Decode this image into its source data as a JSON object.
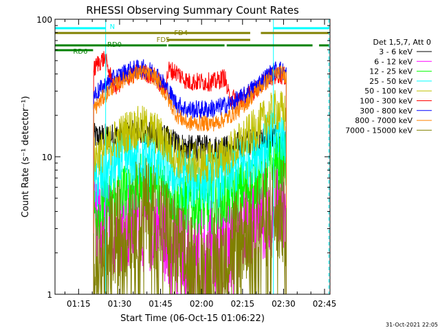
{
  "chart_data": {
    "type": "line",
    "title": "RHESSI Observing Summary Count Rates",
    "xlabel": "Start Time (06-Oct-15 01:06:22)",
    "ylabel": "Count Rate (s⁻¹ detector⁻¹)",
    "yscale": "log",
    "ylim": [
      1,
      100
    ],
    "xlim_minutes": [
      66.37,
      167.0
    ],
    "x_ticks": [
      {
        "m": 75,
        "label": "01:15"
      },
      {
        "m": 90,
        "label": "01:30"
      },
      {
        "m": 105,
        "label": "01:45"
      },
      {
        "m": 120,
        "label": "02:00"
      },
      {
        "m": 135,
        "label": "02:15"
      },
      {
        "m": 150,
        "label": "02:30"
      },
      {
        "m": 165,
        "label": "02:45"
      }
    ],
    "y_ticks": [
      {
        "v": 1,
        "label": "1"
      },
      {
        "v": 10,
        "label": "10"
      },
      {
        "v": 100,
        "label": "100"
      }
    ],
    "legend_header": "Det 1,5,7, Att 0",
    "legend_position": "right",
    "footer_date": "31-Oct-2021 22:05",
    "night_line": {
      "label": "N",
      "color": "#00ffff",
      "segments": [
        [
          66.4,
          84.9
        ],
        [
          146.3,
          166.6
        ]
      ],
      "boundaries": [
        84.9,
        146.3
      ],
      "dashed_boundary": 166.6
    },
    "flag_lines": [
      {
        "label": "FD4",
        "color": "#808000",
        "level": 1,
        "segments": [
          [
            66.4,
            137.8
          ],
          [
            141.7,
            166.6
          ]
        ]
      },
      {
        "label": "FD5",
        "color": "#808000",
        "level": 2,
        "segments": [
          [
            107.3,
            137.8
          ]
        ]
      },
      {
        "label": "RD0",
        "color": "#008000",
        "level": 3,
        "segments": [
          [
            66.4,
            107.3
          ],
          [
            107.8,
            128.4
          ],
          [
            129.2,
            160.6
          ],
          [
            163.0,
            166.6
          ]
        ]
      },
      {
        "label": "RD6",
        "color": "#008000",
        "level": 4,
        "segments": [
          [
            66.4,
            80.3
          ]
        ]
      }
    ],
    "data_gaps": [
      [
        66.37,
        80.3
      ],
      [
        151.7,
        167.0
      ]
    ],
    "series": [
      {
        "name": "3 - 6 keV",
        "color": "#000000",
        "points": [
          [
            80.5,
            14
          ],
          [
            84,
            14
          ],
          [
            88,
            14
          ],
          [
            93,
            14.5
          ],
          [
            98,
            15
          ],
          [
            103,
            14.5
          ],
          [
            107,
            13.5
          ],
          [
            111,
            12.5
          ],
          [
            115,
            11.5
          ],
          [
            120,
            11.5
          ],
          [
            125,
            11.5
          ],
          [
            130,
            11.5
          ],
          [
            135,
            12.5
          ],
          [
            140,
            13
          ],
          [
            145,
            13.5
          ],
          [
            148,
            13.5
          ],
          [
            151,
            12
          ]
        ]
      },
      {
        "name": "6 - 12 keV",
        "color": "#ff00ff",
        "points": [
          [
            80.5,
            3
          ],
          [
            84,
            3
          ],
          [
            88,
            3.1
          ],
          [
            93,
            3.2
          ],
          [
            98,
            3.2
          ],
          [
            103,
            3
          ],
          [
            107,
            2.6
          ],
          [
            111,
            2.3
          ],
          [
            115,
            2.2
          ],
          [
            120,
            2.2
          ],
          [
            125,
            2.2
          ],
          [
            130,
            2.4
          ],
          [
            135,
            2.8
          ],
          [
            140,
            3.3
          ],
          [
            145,
            4
          ],
          [
            148,
            4.5
          ],
          [
            151,
            4.5
          ]
        ]
      },
      {
        "name": "12 - 25 keV",
        "color": "#00ff00",
        "points": [
          [
            80.5,
            4
          ],
          [
            84,
            4.2
          ],
          [
            88,
            5
          ],
          [
            93,
            5.8
          ],
          [
            98,
            6.5
          ],
          [
            103,
            6.5
          ],
          [
            107,
            5.8
          ],
          [
            111,
            4.8
          ],
          [
            115,
            4.5
          ],
          [
            120,
            4.5
          ],
          [
            125,
            4.5
          ],
          [
            130,
            5
          ],
          [
            135,
            5.8
          ],
          [
            140,
            6.8
          ],
          [
            145,
            8.5
          ],
          [
            148,
            9.5
          ],
          [
            151,
            9
          ]
        ]
      },
      {
        "name": "25 - 50 keV",
        "color": "#00ffff",
        "points": [
          [
            80.5,
            6.5
          ],
          [
            84,
            7
          ],
          [
            88,
            8.5
          ],
          [
            93,
            9.5
          ],
          [
            98,
            10
          ],
          [
            103,
            9.5
          ],
          [
            107,
            8.5
          ],
          [
            111,
            7
          ],
          [
            115,
            6.8
          ],
          [
            120,
            6.8
          ],
          [
            125,
            6.8
          ],
          [
            130,
            7.5
          ],
          [
            135,
            9
          ],
          [
            140,
            11
          ],
          [
            145,
            13
          ],
          [
            148,
            15
          ],
          [
            151,
            14
          ]
        ]
      },
      {
        "name": "50 - 100 keV",
        "color": "#c0c000",
        "points": [
          [
            80.5,
            10
          ],
          [
            84,
            11
          ],
          [
            88,
            13
          ],
          [
            93,
            15.5
          ],
          [
            98,
            16.5
          ],
          [
            103,
            15
          ],
          [
            107,
            12.5
          ],
          [
            111,
            10
          ],
          [
            115,
            9
          ],
          [
            120,
            9
          ],
          [
            125,
            9.3
          ],
          [
            130,
            10.5
          ],
          [
            135,
            13
          ],
          [
            140,
            16
          ],
          [
            145,
            20
          ],
          [
            148,
            22
          ],
          [
            151,
            20
          ]
        ]
      },
      {
        "name": "100 - 300 keV",
        "color": "#ff0000",
        "points": [
          [
            80.5,
            42
          ],
          [
            82,
            48
          ],
          [
            84.5,
            52
          ],
          [
            88,
            32
          ],
          [
            93,
            38
          ],
          [
            98,
            42
          ],
          [
            103,
            38
          ],
          [
            106.5,
            31
          ],
          [
            108,
            43
          ],
          [
            111,
            41
          ],
          [
            115,
            35
          ],
          [
            120,
            35
          ],
          [
            125,
            35
          ],
          [
            128.5,
            38
          ],
          [
            130,
            27
          ],
          [
            135,
            26
          ],
          [
            140,
            31
          ],
          [
            145,
            38
          ],
          [
            148,
            40
          ],
          [
            151,
            38
          ]
        ]
      },
      {
        "name": "300 - 800 keV",
        "color": "#0000ff",
        "points": [
          [
            80.5,
            28
          ],
          [
            84,
            32
          ],
          [
            88,
            37
          ],
          [
            93,
            42
          ],
          [
            98,
            44
          ],
          [
            103,
            41
          ],
          [
            107,
            32
          ],
          [
            111,
            24
          ],
          [
            115,
            22
          ],
          [
            120,
            22
          ],
          [
            125,
            22.5
          ],
          [
            130,
            24
          ],
          [
            135,
            27
          ],
          [
            140,
            33
          ],
          [
            145,
            40
          ],
          [
            148,
            44
          ],
          [
            151,
            40
          ]
        ]
      },
      {
        "name": "800 - 7000 keV",
        "color": "#ff8000",
        "points": [
          [
            80.5,
            22
          ],
          [
            84,
            27
          ],
          [
            88,
            33
          ],
          [
            93,
            38
          ],
          [
            98,
            41
          ],
          [
            103,
            38
          ],
          [
            107,
            28
          ],
          [
            111,
            20
          ],
          [
            115,
            17.5
          ],
          [
            120,
            17.5
          ],
          [
            125,
            17.5
          ],
          [
            130,
            19.5
          ],
          [
            135,
            23
          ],
          [
            140,
            30
          ],
          [
            145,
            37
          ],
          [
            148,
            41
          ],
          [
            151,
            39
          ]
        ]
      },
      {
        "name": "7000 - 15000 keV",
        "color": "#808000",
        "points": [
          [
            80.5,
            1.6
          ],
          [
            84,
            1.8
          ],
          [
            88,
            2.6
          ],
          [
            93,
            3.5
          ],
          [
            98,
            4
          ],
          [
            103,
            3.8
          ],
          [
            107,
            3
          ],
          [
            111,
            2
          ],
          [
            115,
            1.6
          ],
          [
            120,
            1.4
          ],
          [
            125,
            1.6
          ],
          [
            130,
            2.2
          ],
          [
            135,
            2.8
          ],
          [
            140,
            3.5
          ],
          [
            145,
            3.9
          ],
          [
            148,
            3.9
          ],
          [
            151,
            3.8
          ]
        ]
      }
    ]
  }
}
